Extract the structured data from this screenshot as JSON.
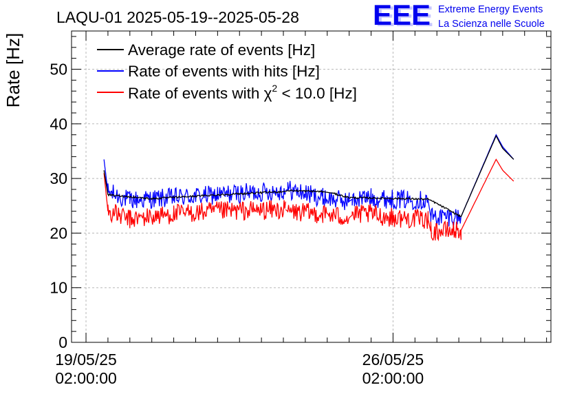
{
  "chart_data": {
    "type": "line",
    "title": "LAQU-01 2025-05-19--2025-05-28",
    "xlabel": "",
    "ylabel": "Rate [Hz]",
    "ylim": [
      0,
      57
    ],
    "yticks": [
      0,
      10,
      20,
      30,
      40,
      50
    ],
    "xlim_days": [
      -0.33,
      10.6
    ],
    "xticks": [
      {
        "day": 0,
        "date": "19/05/25",
        "time": "02:00:00"
      },
      {
        "day": 7,
        "date": "26/05/25",
        "time": "02:00:00"
      }
    ],
    "grid": true,
    "legend_position": "top-left",
    "noise": {
      "blue": 0.9,
      "red": 0.9,
      "black": 0.08
    },
    "series": [
      {
        "name": "Average rate of events [Hz]",
        "color": "#000000",
        "segments": [
          [
            [
              0.41,
              31.5
            ],
            [
              0.5,
              27.0
            ],
            [
              1.5,
              26.3
            ],
            [
              3.0,
              27.0
            ],
            [
              4.5,
              27.6
            ],
            [
              4.58,
              27.7
            ]
          ],
          [
            [
              4.58,
              27.7
            ],
            [
              4.6,
              27.8
            ],
            [
              5.4,
              27.6
            ],
            [
              5.62,
              27.3
            ],
            [
              6.0,
              26.5
            ],
            [
              7.3,
              26.3
            ],
            [
              7.8,
              26.2
            ],
            [
              7.86,
              26.0
            ],
            [
              8.55,
              23.0
            ],
            [
              9.35,
              37.8
            ],
            [
              9.5,
              35.5
            ],
            [
              9.75,
              33.5
            ]
          ]
        ]
      },
      {
        "name": "Rate of events with hits [Hz]",
        "color": "#0000ff",
        "segments": [
          [
            [
              0.41,
              33.5
            ],
            [
              0.5,
              27.5
            ],
            [
              1.0,
              26.0
            ],
            [
              2.0,
              26.5
            ],
            [
              3.0,
              27.0
            ],
            [
              4.55,
              27.8
            ]
          ],
          [
            [
              4.55,
              27.8
            ],
            [
              4.6,
              28.0
            ],
            [
              5.4,
              26.5
            ],
            [
              6.0,
              25.8
            ],
            [
              6.07,
              26.2
            ],
            [
              6.07,
              26.2
            ],
            [
              6.5,
              26.5
            ],
            [
              7.0,
              26.2
            ],
            [
              7.8,
              26.0
            ],
            [
              7.86,
              23.0
            ],
            [
              8.55,
              23.0
            ],
            [
              9.35,
              38.0
            ],
            [
              9.5,
              35.8
            ],
            [
              9.75,
              33.5
            ]
          ]
        ]
      },
      {
        "name": "Rate of events with χ² < 10.0 [Hz]",
        "color": "#ff0000",
        "segments": [
          [
            [
              0.41,
              31.0
            ],
            [
              0.5,
              24.0
            ],
            [
              1.0,
              22.5
            ],
            [
              2.0,
              23.5
            ],
            [
              3.0,
              24.0
            ],
            [
              4.55,
              24.3
            ]
          ],
          [
            [
              4.55,
              24.3
            ],
            [
              4.6,
              24.0
            ],
            [
              5.4,
              23.5
            ],
            [
              6.0,
              22.8
            ],
            [
              6.07,
              23.3
            ],
            [
              6.5,
              23.5
            ],
            [
              7.0,
              22.8
            ],
            [
              7.8,
              22.5
            ],
            [
              7.86,
              20.3
            ],
            [
              8.55,
              20.5
            ],
            [
              9.35,
              33.5
            ],
            [
              9.5,
              31.5
            ],
            [
              9.75,
              29.5
            ]
          ]
        ]
      }
    ],
    "legend": [
      {
        "label": "Average rate of events [Hz]",
        "color": "#000000"
      },
      {
        "label": "Rate of events with hits [Hz]",
        "color": "#0000ff"
      },
      {
        "label_pre": "Rate of events with ",
        "label_chi": "χ",
        "label_sup": "2",
        "label_post": " < 10.0 [Hz]",
        "color": "#ff0000"
      }
    ]
  },
  "logo": {
    "mark": "EEE",
    "line1": "Extreme Energy Events",
    "line2": "La Scienza nelle Scuole",
    "color": "#0000ee"
  }
}
